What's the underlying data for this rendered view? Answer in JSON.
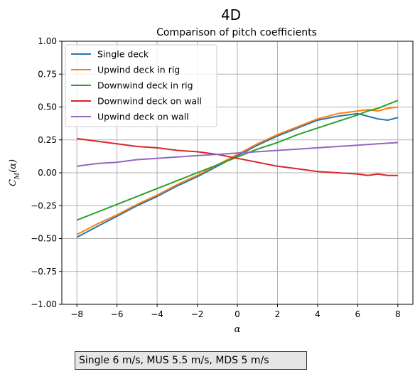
{
  "chart_data": {
    "type": "line",
    "suptitle": "4D",
    "title": "Comparison of pitch coefficients",
    "xlabel": "α",
    "ylabel": "C_M(α)",
    "xlim": [
      -8.75,
      8.75
    ],
    "ylim": [
      -1.0,
      1.0
    ],
    "xticks": [
      -8,
      -6,
      -4,
      -2,
      0,
      2,
      4,
      6,
      8
    ],
    "yticks": [
      -1.0,
      -0.75,
      -0.5,
      -0.25,
      0.0,
      0.25,
      0.5,
      0.75,
      1.0
    ],
    "xtick_labels": [
      "−8",
      "−6",
      "−4",
      "−2",
      "0",
      "2",
      "4",
      "6",
      "8"
    ],
    "ytick_labels": [
      "−1.00",
      "−0.75",
      "−0.50",
      "−0.25",
      "0.00",
      "0.25",
      "0.50",
      "0.75",
      "1.00"
    ],
    "grid": true,
    "legend_position": "top-left",
    "x": [
      -8,
      -7,
      -6,
      -5,
      -4,
      -3,
      -2,
      -1,
      0,
      1,
      2,
      3,
      4,
      5,
      6,
      6.5,
      7,
      7.5,
      8
    ],
    "series": [
      {
        "name": "Single deck",
        "color": "#1f77b4",
        "values": [
          -0.49,
          -0.41,
          -0.33,
          -0.25,
          -0.18,
          -0.1,
          -0.03,
          0.05,
          0.13,
          0.21,
          0.28,
          0.34,
          0.4,
          0.43,
          0.45,
          0.43,
          0.41,
          0.4,
          0.42
        ]
      },
      {
        "name": "Upwind deck in rig",
        "color": "#ff7f0e",
        "values": [
          -0.47,
          -0.39,
          -0.32,
          -0.24,
          -0.17,
          -0.09,
          -0.02,
          0.06,
          0.14,
          0.22,
          0.29,
          0.35,
          0.41,
          0.45,
          0.47,
          0.48,
          0.47,
          0.49,
          0.5
        ]
      },
      {
        "name": "Downwind deck in rig",
        "color": "#2ca02c",
        "values": [
          -0.36,
          -0.3,
          -0.24,
          -0.18,
          -0.12,
          -0.06,
          0.0,
          0.06,
          0.12,
          0.18,
          0.23,
          0.29,
          0.34,
          0.39,
          0.44,
          0.47,
          0.49,
          0.52,
          0.55
        ]
      },
      {
        "name": "Downwind deck on wall",
        "color": "#d62728",
        "values": [
          0.26,
          0.24,
          0.22,
          0.2,
          0.19,
          0.17,
          0.16,
          0.14,
          0.11,
          0.08,
          0.05,
          0.03,
          0.01,
          0.0,
          -0.01,
          -0.02,
          -0.01,
          -0.02,
          -0.02
        ]
      },
      {
        "name": "Upwind deck on wall",
        "color": "#9467bd",
        "values": [
          0.05,
          0.07,
          0.08,
          0.1,
          0.11,
          0.12,
          0.13,
          0.14,
          0.15,
          0.16,
          0.17,
          0.18,
          0.19,
          0.2,
          0.21,
          0.215,
          0.22,
          0.225,
          0.23
        ]
      }
    ]
  },
  "footer_text": "Single 6 m/s, MUS 5.5 m/s, MDS 5 m/s"
}
